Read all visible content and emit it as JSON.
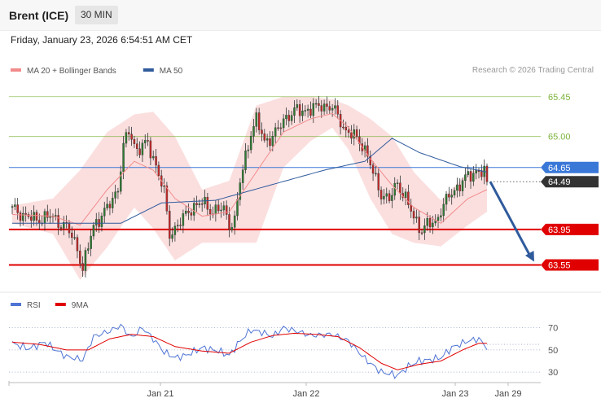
{
  "header": {
    "instrument": "Brent (ICE)",
    "timeframe": "30 MIN"
  },
  "datetime": "Friday, January 23, 2026 6:54:51 AM CET",
  "credit": "Research © 2026 Trading Central",
  "colors": {
    "bollinger": "#f28b8b",
    "ma50": "#2f5a9c",
    "green_level": "#7db33b",
    "red_level": "#e00000",
    "blue_level": "#3a78d8",
    "current": "#333333",
    "rsi": "#4f74d4",
    "rsi_ma": "#e00000",
    "bull": "#2e7d32",
    "bear": "#c62828"
  },
  "chart_data": [
    {
      "type": "candlestick",
      "legend": [
        {
          "name": "MA 20 + Bollinger Bands",
          "color": "#f28b8b"
        },
        {
          "name": "MA 50",
          "color": "#2f5a9c"
        }
      ],
      "ylim": [
        63.26,
        65.65
      ],
      "x_ticks": [
        "Jan 21",
        "Jan 22",
        "Jan 23",
        "Jan 29"
      ],
      "levels": [
        {
          "label": "65.45",
          "value": 65.45,
          "kind": "resistance"
        },
        {
          "label": "65.00",
          "value": 65.0,
          "kind": "resistance"
        },
        {
          "label": "64.65",
          "value": 64.65,
          "kind": "pivot"
        },
        {
          "label": "63.95",
          "value": 63.95,
          "kind": "support"
        },
        {
          "label": "63.55",
          "value": 63.55,
          "kind": "support"
        }
      ],
      "current_price": {
        "label": "64.49",
        "value": 64.49
      },
      "anchors": [
        [
          0,
          64.18
        ],
        [
          8,
          64.06
        ],
        [
          14,
          64.1
        ],
        [
          20,
          63.98
        ],
        [
          24,
          63.75
        ],
        [
          26,
          63.5
        ],
        [
          30,
          64.0
        ],
        [
          35,
          64.18
        ],
        [
          39,
          64.42
        ],
        [
          41,
          64.88
        ],
        [
          43,
          65.06
        ],
        [
          46,
          64.85
        ],
        [
          50,
          64.92
        ],
        [
          53,
          64.68
        ],
        [
          56,
          64.36
        ],
        [
          58,
          63.9
        ],
        [
          62,
          64.03
        ],
        [
          66,
          64.2
        ],
        [
          70,
          64.25
        ],
        [
          74,
          64.16
        ],
        [
          78,
          64.18
        ],
        [
          80,
          64.01
        ],
        [
          82,
          64.05
        ],
        [
          84,
          64.48
        ],
        [
          86,
          64.78
        ],
        [
          88,
          65.05
        ],
        [
          90,
          65.18
        ],
        [
          93,
          64.95
        ],
        [
          96,
          65.0
        ],
        [
          98,
          65.07
        ],
        [
          100,
          65.2
        ],
        [
          104,
          65.28
        ],
        [
          108,
          65.3
        ],
        [
          112,
          65.32
        ],
        [
          114,
          65.36
        ],
        [
          118,
          65.32
        ],
        [
          121,
          65.18
        ],
        [
          123,
          65.06
        ],
        [
          126,
          65.0
        ],
        [
          129,
          64.92
        ],
        [
          131,
          64.78
        ],
        [
          133,
          64.58
        ],
        [
          136,
          64.36
        ],
        [
          139,
          64.28
        ],
        [
          142,
          64.48
        ],
        [
          145,
          64.3
        ],
        [
          148,
          64.08
        ],
        [
          151,
          63.95
        ],
        [
          153,
          64.0
        ],
        [
          156,
          64.03
        ],
        [
          158,
          64.18
        ],
        [
          162,
          64.36
        ],
        [
          166,
          64.5
        ],
        [
          170,
          64.58
        ],
        [
          171,
          64.62
        ],
        [
          174,
          64.6
        ],
        [
          175,
          64.49
        ]
      ],
      "ma50": [
        [
          0,
          64.02
        ],
        [
          20,
          64.02
        ],
        [
          40,
          64.02
        ],
        [
          55,
          64.25
        ],
        [
          75,
          64.28
        ],
        [
          95,
          64.45
        ],
        [
          115,
          64.62
        ],
        [
          130,
          64.72
        ],
        [
          140,
          64.98
        ],
        [
          150,
          64.82
        ],
        [
          165,
          64.66
        ],
        [
          175,
          64.6
        ]
      ],
      "bollinger": [
        [
          0,
          64.22,
          64.12,
          64.02
        ],
        [
          15,
          64.3,
          64.1,
          63.9
        ],
        [
          25,
          64.62,
          64.0,
          63.38
        ],
        [
          35,
          65.05,
          64.4,
          63.75
        ],
        [
          45,
          65.25,
          64.72,
          64.2
        ],
        [
          52,
          65.28,
          64.62,
          63.96
        ],
        [
          60,
          65.0,
          64.3,
          63.6
        ],
        [
          70,
          64.4,
          64.1,
          63.8
        ],
        [
          80,
          64.5,
          64.15,
          63.8
        ],
        [
          90,
          65.35,
          64.6,
          63.8
        ],
        [
          100,
          65.45,
          65.05,
          64.65
        ],
        [
          110,
          65.45,
          65.2,
          64.95
        ],
        [
          118,
          65.42,
          65.26,
          65.1
        ],
        [
          124,
          65.35,
          65.1,
          64.85
        ],
        [
          132,
          65.2,
          64.75,
          64.3
        ],
        [
          140,
          65.0,
          64.45,
          63.9
        ],
        [
          148,
          64.6,
          64.2,
          63.8
        ],
        [
          158,
          64.28,
          64.02,
          63.76
        ],
        [
          168,
          64.6,
          64.3,
          64.0
        ],
        [
          175,
          64.65,
          64.4,
          64.15
        ]
      ]
    },
    {
      "type": "line",
      "legend": [
        {
          "name": "RSI",
          "color": "#4f74d4"
        },
        {
          "name": "9MA",
          "color": "#e00000"
        }
      ],
      "ylim": [
        22,
        80
      ],
      "y_ticks": [
        70,
        50,
        30
      ],
      "rsi": [
        [
          0,
          56
        ],
        [
          6,
          51
        ],
        [
          12,
          57
        ],
        [
          16,
          50
        ],
        [
          20,
          44
        ],
        [
          26,
          41
        ],
        [
          30,
          62
        ],
        [
          36,
          67
        ],
        [
          40,
          72
        ],
        [
          44,
          61
        ],
        [
          48,
          70
        ],
        [
          52,
          60
        ],
        [
          56,
          48
        ],
        [
          60,
          43
        ],
        [
          64,
          45
        ],
        [
          70,
          52
        ],
        [
          76,
          49
        ],
        [
          80,
          45
        ],
        [
          84,
          58
        ],
        [
          88,
          68
        ],
        [
          92,
          66
        ],
        [
          96,
          62
        ],
        [
          100,
          70
        ],
        [
          106,
          66
        ],
        [
          110,
          63
        ],
        [
          118,
          64
        ],
        [
          124,
          58
        ],
        [
          130,
          42
        ],
        [
          136,
          30
        ],
        [
          142,
          27
        ],
        [
          146,
          35
        ],
        [
          150,
          40
        ],
        [
          154,
          41
        ],
        [
          158,
          43
        ],
        [
          162,
          52
        ],
        [
          168,
          58
        ],
        [
          172,
          60
        ],
        [
          175,
          52
        ]
      ],
      "rsi_ma": [
        [
          0,
          57
        ],
        [
          10,
          55
        ],
        [
          20,
          50
        ],
        [
          28,
          50
        ],
        [
          36,
          60
        ],
        [
          44,
          64
        ],
        [
          52,
          62
        ],
        [
          60,
          53
        ],
        [
          70,
          49
        ],
        [
          80,
          47
        ],
        [
          88,
          57
        ],
        [
          96,
          63
        ],
        [
          104,
          65
        ],
        [
          112,
          64
        ],
        [
          120,
          62
        ],
        [
          128,
          52
        ],
        [
          136,
          38
        ],
        [
          142,
          32
        ],
        [
          150,
          37
        ],
        [
          158,
          40
        ],
        [
          166,
          50
        ],
        [
          172,
          56
        ],
        [
          175,
          56
        ]
      ],
      "projection": 55
    }
  ]
}
